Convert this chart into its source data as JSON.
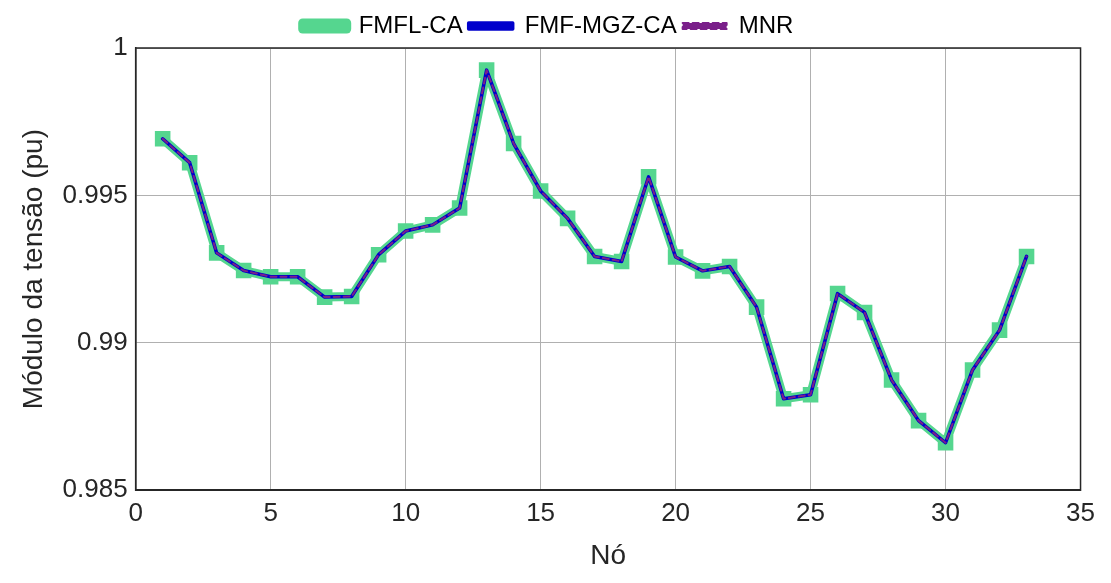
{
  "chart_data": {
    "type": "line",
    "xlabel": "Nó",
    "ylabel": "Módulo da tensão (pu)",
    "x": [
      1,
      2,
      3,
      4,
      5,
      6,
      7,
      8,
      9,
      10,
      11,
      12,
      13,
      14,
      15,
      16,
      17,
      18,
      19,
      20,
      21,
      22,
      23,
      24,
      25,
      26,
      27,
      28,
      29,
      30,
      31,
      32,
      33
    ],
    "series": [
      {
        "name": "FMFL-CA",
        "color": "#55d68f",
        "marker": "square",
        "line_style": "solid",
        "values": [
          0.99692,
          0.99611,
          0.99305,
          0.99245,
          0.99224,
          0.99224,
          0.99155,
          0.99157,
          0.99299,
          0.99379,
          0.994,
          0.99457,
          0.99925,
          0.99676,
          0.99515,
          0.99422,
          0.99293,
          0.99276,
          0.99563,
          0.99291,
          0.99244,
          0.99259,
          0.99121,
          0.9881,
          0.98824,
          0.99167,
          0.99103,
          0.98874,
          0.98736,
          0.98661,
          0.98908,
          0.99043,
          0.99293
        ]
      },
      {
        "name": "FMF-MGZ-CA",
        "color": "#0000cc",
        "marker": "none",
        "line_style": "solid",
        "values": [
          0.99692,
          0.99611,
          0.99305,
          0.99245,
          0.99224,
          0.99224,
          0.99155,
          0.99157,
          0.99299,
          0.99379,
          0.994,
          0.99457,
          0.99925,
          0.99676,
          0.99515,
          0.99422,
          0.99293,
          0.99276,
          0.99563,
          0.99291,
          0.99244,
          0.99259,
          0.99121,
          0.9881,
          0.98824,
          0.99167,
          0.99103,
          0.98874,
          0.98736,
          0.98661,
          0.98908,
          0.99043,
          0.99293
        ]
      },
      {
        "name": "MNR",
        "color": "#7a1f8a",
        "marker": "none",
        "line_style": "dashed",
        "values": [
          0.99692,
          0.99611,
          0.99305,
          0.99245,
          0.99224,
          0.99224,
          0.99155,
          0.99157,
          0.99299,
          0.99379,
          0.994,
          0.99457,
          0.99925,
          0.99676,
          0.99515,
          0.99422,
          0.99293,
          0.99276,
          0.99563,
          0.99291,
          0.99244,
          0.99259,
          0.99121,
          0.9881,
          0.98824,
          0.99167,
          0.99103,
          0.98874,
          0.98736,
          0.98661,
          0.98908,
          0.99043,
          0.99293
        ]
      }
    ],
    "xlim": [
      0,
      35
    ],
    "xticks": [
      0,
      5,
      10,
      15,
      20,
      25,
      30,
      35
    ],
    "ylim": [
      0.985,
      1
    ],
    "yticks": [
      0.985,
      0.99,
      0.995,
      1
    ],
    "grid": true,
    "legend": "top"
  }
}
